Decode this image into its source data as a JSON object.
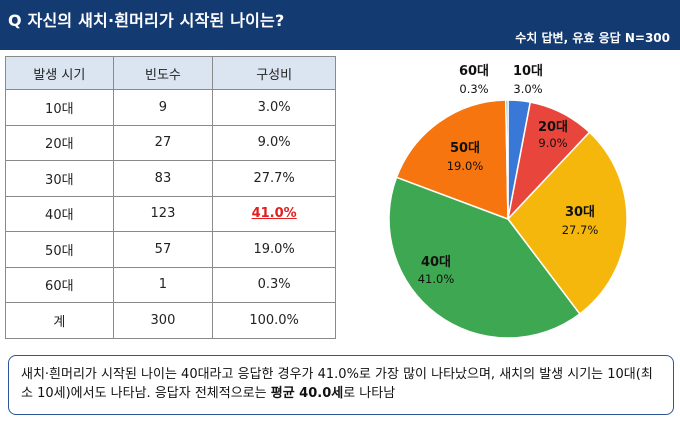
{
  "header": {
    "title": "Q 자신의 새치·흰머리가 시작된 나이는?",
    "note": "수치 답변, 유효 응답 N=300"
  },
  "table": {
    "headers": [
      "발생 시기",
      "빈도수",
      "구성비"
    ],
    "rows": [
      [
        "10대",
        "9",
        "3.0%"
      ],
      [
        "20대",
        "27",
        "9.0%"
      ],
      [
        "30대",
        "83",
        "27.7%"
      ],
      [
        "40대",
        "123",
        "41.0%"
      ],
      [
        "50대",
        "57",
        "19.0%"
      ],
      [
        "60대",
        "1",
        "0.3%"
      ],
      [
        "계",
        "300",
        "100.0%"
      ]
    ],
    "highlight_color": "#e02020"
  },
  "chart_data": {
    "type": "pie",
    "slices": [
      {
        "name": "10대",
        "value": 3.0,
        "label": "3.0%",
        "color": "#3a78d8"
      },
      {
        "name": "20대",
        "value": 9.0,
        "label": "9.0%",
        "color": "#e8453c"
      },
      {
        "name": "30대",
        "value": 27.7,
        "label": "27.7%",
        "color": "#f6b70c"
      },
      {
        "name": "40대",
        "value": 41.0,
        "label": "41.0%",
        "color": "#3da751"
      },
      {
        "name": "50대",
        "value": 19.0,
        "label": "19.0%",
        "color": "#f7750e"
      },
      {
        "name": "60대",
        "value": 0.3,
        "label": "0.3%",
        "color": "#3ea4b5"
      }
    ]
  },
  "summary": {
    "text_before": "새치·흰머리가 시작된 나이는 40대라고 응답한 경우가 41.0%로 가장 많이 나타났으며, 새치의 발생 시기는 10대(최소 10세)에서도 나타남. 응답자 전체적으로는 ",
    "text_bold": "평균 40.0세",
    "text_after": "로 나타남"
  }
}
